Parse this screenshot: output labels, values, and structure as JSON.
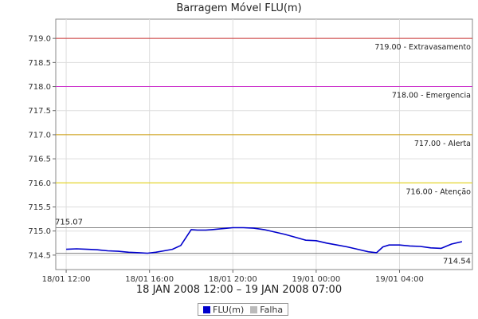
{
  "chart_data": {
    "type": "line",
    "title": "Barragem Móvel FLU(m)",
    "xlabel": "18 JAN 2008 12:00 – 19 JAN 2008 07:00",
    "ylim": [
      714.2,
      719.4
    ],
    "xlim_hours": [
      11.5,
      31.5
    ],
    "x_tick_labels": [
      {
        "label": "18/01 12:00",
        "hour": 12
      },
      {
        "label": "18/01 16:00",
        "hour": 16
      },
      {
        "label": "18/01 20:00",
        "hour": 20
      },
      {
        "label": "19/01 00:00",
        "hour": 24
      },
      {
        "label": "19/01 04:00",
        "hour": 28
      }
    ],
    "y_ticks": [
      714.5,
      715.0,
      715.5,
      716.0,
      716.5,
      717.0,
      717.5,
      718.0,
      718.5,
      719.0
    ],
    "y_tick_labels": [
      "714.5",
      "715.0",
      "715.5",
      "716.0",
      "716.5",
      "717.0",
      "717.5",
      "718.0",
      "718.5",
      "719.0"
    ],
    "grid": true,
    "thresholds": [
      {
        "value": 719.0,
        "label": "719.00 - Extravasamento",
        "color": "#cc3333"
      },
      {
        "value": 718.0,
        "label": "718.00 - Emergencia",
        "color": "#cc33cc"
      },
      {
        "value": 717.0,
        "label": "717.00 - Alerta",
        "color": "#cc9900"
      },
      {
        "value": 716.0,
        "label": "716.00 - Atenção",
        "color": "#e6d200"
      }
    ],
    "max_marker": {
      "value": 715.07,
      "label": "715.07",
      "color": "#888888"
    },
    "min_marker": {
      "value": 714.54,
      "label": "714.54",
      "color": "#888888"
    },
    "series": [
      {
        "name": "FLU(m)",
        "color": "#0000cc",
        "x": [
          12.0,
          12.5,
          13.0,
          13.5,
          14.0,
          14.5,
          15.0,
          15.5,
          15.9,
          16.3,
          16.7,
          17.1,
          17.5,
          18.0,
          18.3,
          18.7,
          19.0,
          19.5,
          20.0,
          20.5,
          21.0,
          21.5,
          22.0,
          22.5,
          23.0,
          23.5,
          24.0,
          24.5,
          25.0,
          25.5,
          26.0,
          26.5,
          26.9,
          27.2,
          27.5,
          28.0,
          28.5,
          29.0,
          29.5,
          30.0,
          30.5,
          31.0
        ],
        "y": [
          714.62,
          714.63,
          714.62,
          714.61,
          714.59,
          714.58,
          714.56,
          714.55,
          714.54,
          714.56,
          714.59,
          714.62,
          714.7,
          715.03,
          715.02,
          715.02,
          715.03,
          715.05,
          715.07,
          715.07,
          715.06,
          715.03,
          714.98,
          714.93,
          714.87,
          714.81,
          714.8,
          714.75,
          714.71,
          714.67,
          714.62,
          714.57,
          714.55,
          714.67,
          714.71,
          714.71,
          714.69,
          714.68,
          714.65,
          714.64,
          714.73,
          714.78
        ]
      }
    ],
    "legend": [
      {
        "label": "FLU(m)",
        "color": "#0000cc"
      },
      {
        "label": "Falha",
        "color": "#bbbbbb"
      }
    ],
    "legend_position": "bottom"
  }
}
